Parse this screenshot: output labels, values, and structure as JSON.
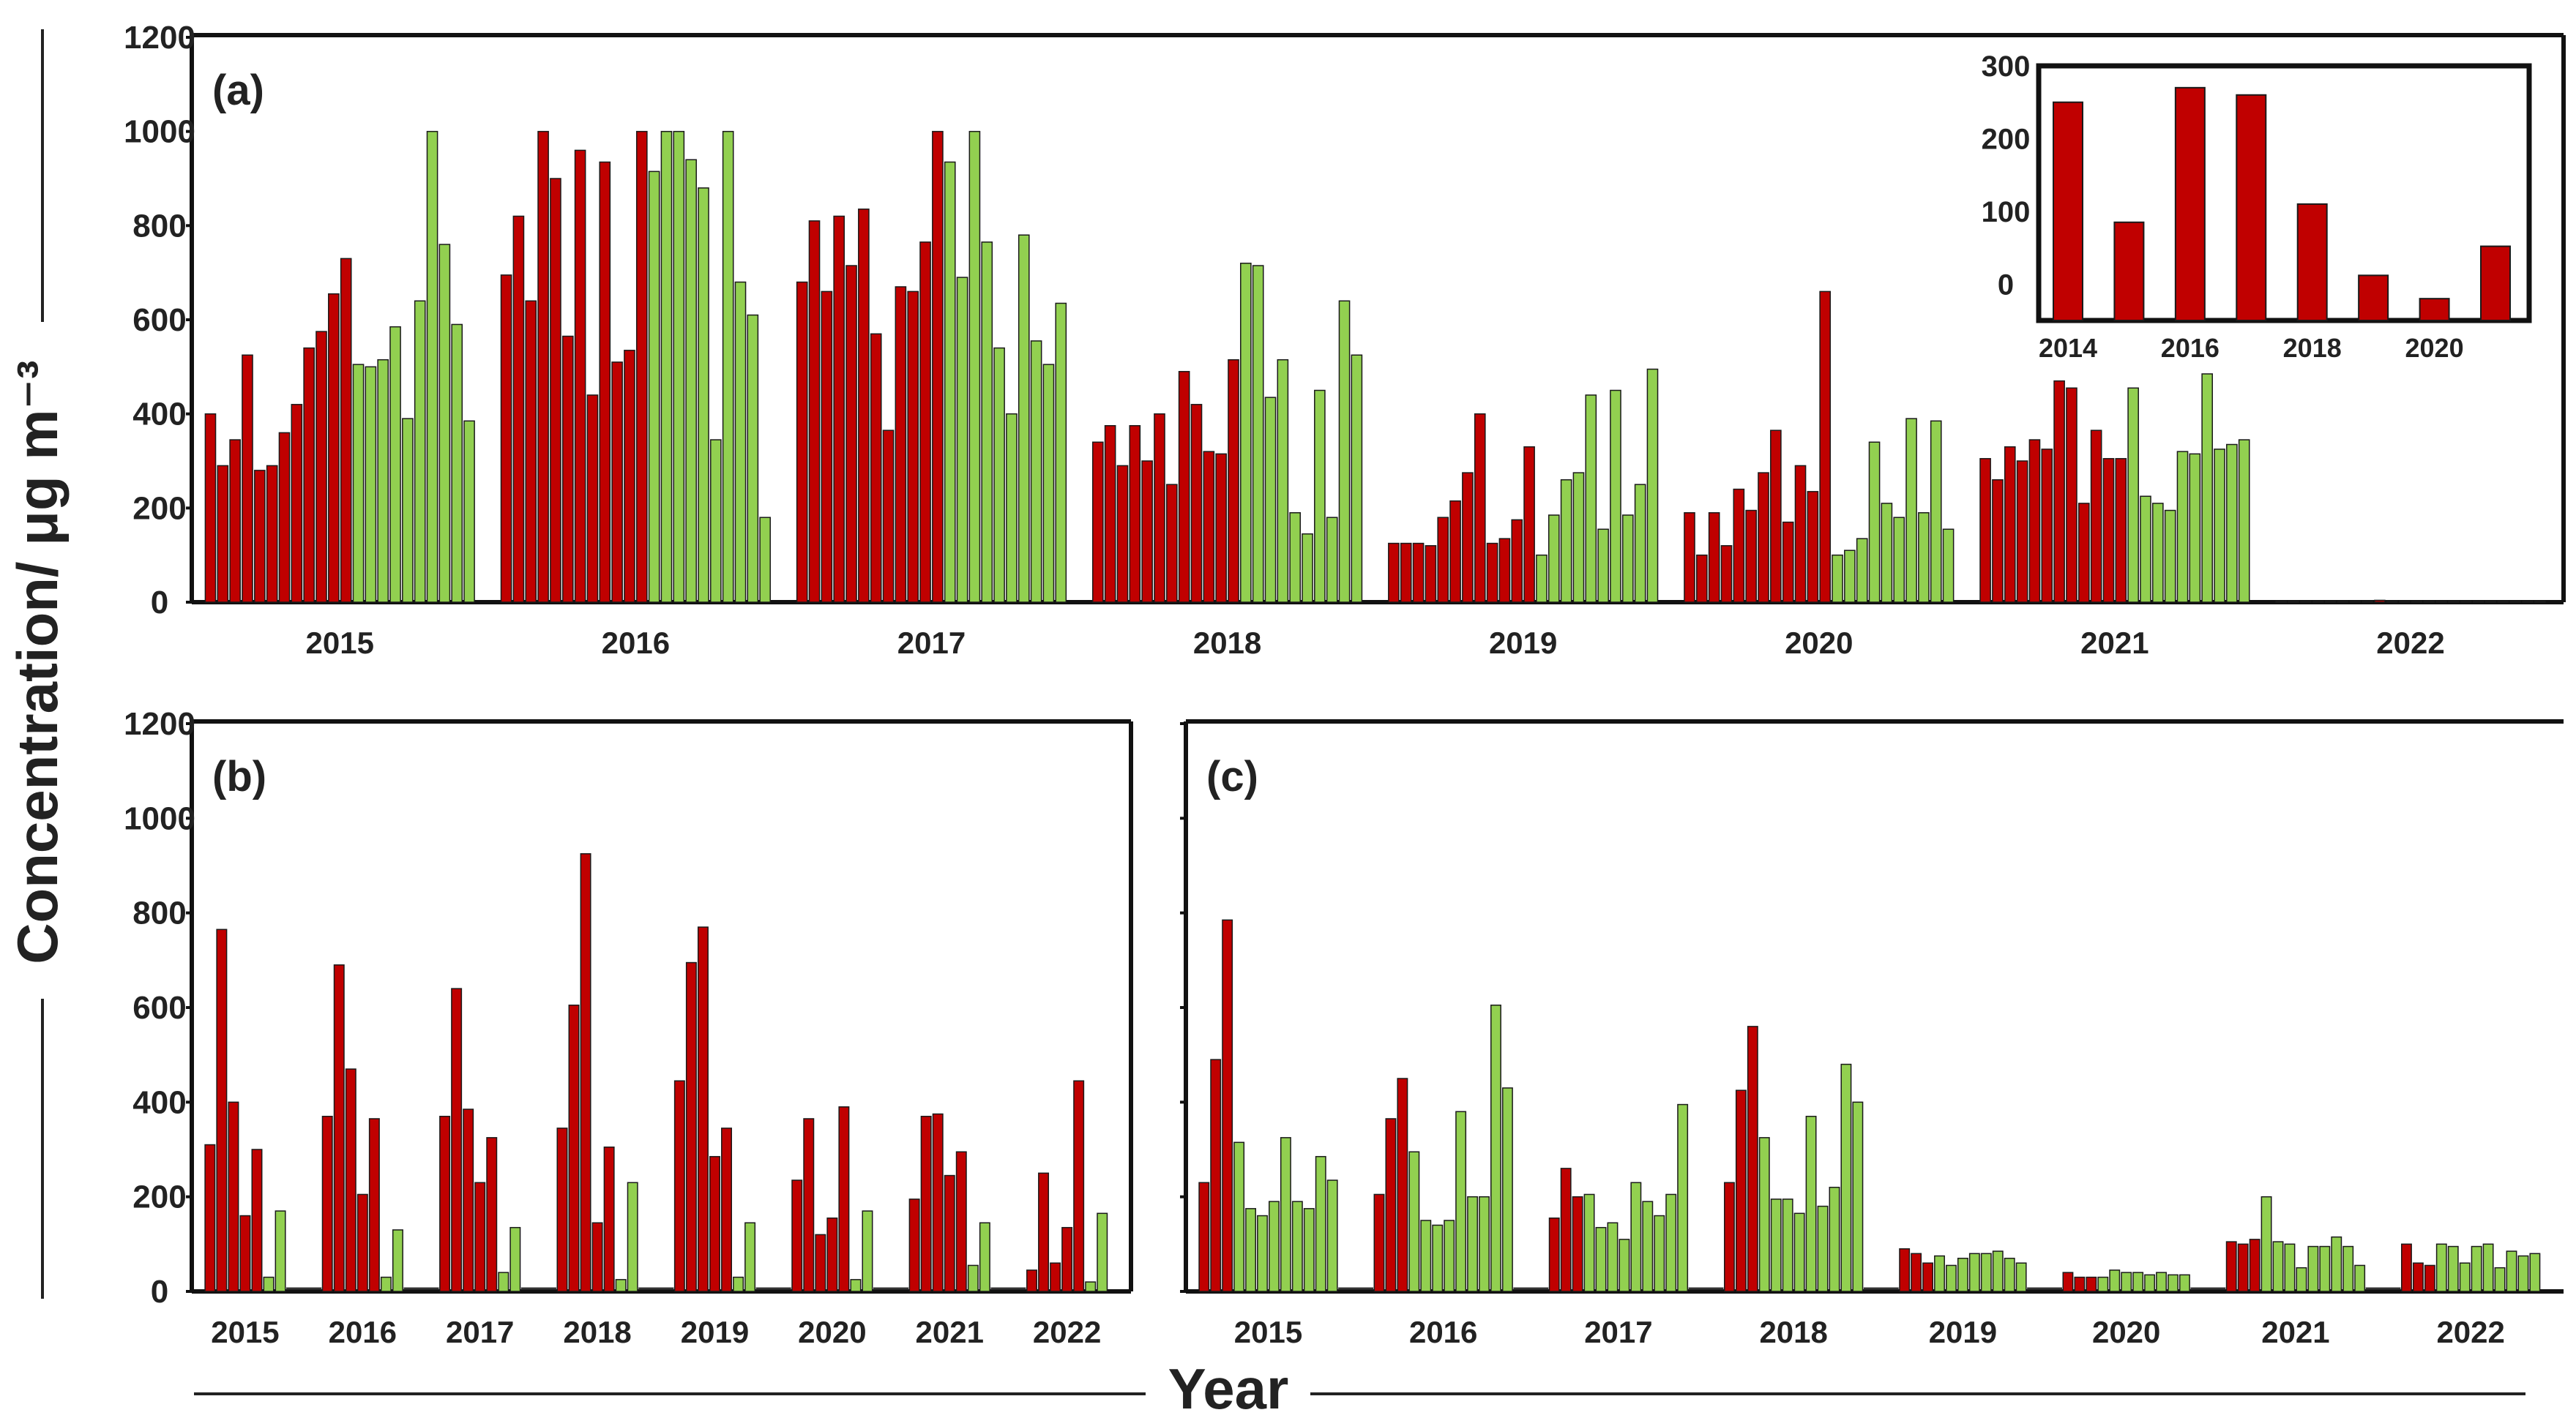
{
  "figure": {
    "ylabel": "Concentration/ μg m⁻³",
    "xlabel": "Year"
  },
  "colors": {
    "red": "#c00000",
    "green": "#92d050",
    "edge": "#1a1a1a"
  },
  "chart_data": [
    {
      "id": "a",
      "type": "bar",
      "panel_label": "(a)",
      "ylim": [
        0,
        1200
      ],
      "yticks": [
        0,
        200,
        400,
        600,
        800,
        1000,
        1200
      ],
      "ylabel": "Concentration/ μg m⁻³",
      "groups": [
        {
          "year": "2015",
          "red": [
            400,
            290,
            345,
            525,
            280,
            290,
            360,
            420,
            540,
            575,
            655,
            730
          ],
          "green": [
            505,
            500,
            515,
            585,
            390,
            640,
            1000,
            760,
            590,
            385
          ]
        },
        {
          "year": "2016",
          "red": [
            695,
            820,
            640,
            1000,
            900,
            565,
            960,
            440,
            935,
            510,
            535,
            1000
          ],
          "green": [
            915,
            1000,
            1000,
            940,
            880,
            345,
            1000,
            680,
            610,
            180
          ]
        },
        {
          "year": "2017",
          "red": [
            680,
            810,
            660,
            820,
            715,
            835,
            570,
            365,
            670,
            660,
            765,
            1000
          ],
          "green": [
            935,
            690,
            1000,
            765,
            540,
            400,
            780,
            555,
            505,
            635
          ]
        },
        {
          "year": "2018",
          "red": [
            340,
            375,
            290,
            375,
            300,
            400,
            250,
            490,
            420,
            320,
            315,
            515
          ],
          "green": [
            720,
            715,
            435,
            515,
            190,
            145,
            450,
            180,
            640,
            525
          ]
        },
        {
          "year": "2019",
          "red": [
            125,
            125,
            125,
            120,
            180,
            215,
            275,
            400,
            125,
            135,
            175,
            330
          ],
          "green": [
            100,
            185,
            260,
            275,
            440,
            155,
            450,
            185,
            250,
            495
          ]
        },
        {
          "year": "2020",
          "red": [
            190,
            100,
            190,
            120,
            240,
            195,
            275,
            365,
            170,
            290,
            235,
            660
          ],
          "green": [
            100,
            110,
            135,
            340,
            210,
            180,
            390,
            190,
            385,
            155
          ]
        },
        {
          "year": "2021",
          "red": [
            305,
            260,
            330,
            300,
            345,
            325,
            470,
            455,
            210,
            365,
            305,
            305
          ],
          "green": [
            455,
            225,
            210,
            195,
            320,
            315,
            485,
            325,
            335,
            345
          ]
        },
        {
          "year": "2022",
          "red": [
            2,
            2,
            2,
            2,
            2,
            2,
            2,
            2,
            4,
            2,
            2,
            2
          ],
          "green": [
            2,
            2,
            2,
            2,
            2,
            2,
            2,
            2,
            2,
            2
          ]
        }
      ]
    },
    {
      "id": "a-inset",
      "type": "bar",
      "ylim": [
        -50,
        300
      ],
      "yticks": [
        0,
        100,
        200,
        300
      ],
      "xticks": [
        "2014",
        "2016",
        "2018",
        "2020"
      ],
      "x": [
        2014,
        2015,
        2016,
        2017,
        2018,
        2019,
        2020,
        2021
      ],
      "values": [
        250,
        85,
        270,
        260,
        110,
        12,
        -20,
        52
      ]
    },
    {
      "id": "b",
      "type": "bar",
      "panel_label": "(b)",
      "ylim": [
        0,
        1200
      ],
      "yticks": [
        0,
        200,
        400,
        600,
        800,
        1000,
        1200
      ],
      "groups": [
        {
          "year": "2015",
          "red": [
            310,
            765,
            400,
            160,
            300
          ],
          "green": [
            30,
            170
          ]
        },
        {
          "year": "2016",
          "red": [
            370,
            690,
            470,
            205,
            365
          ],
          "green": [
            30,
            130
          ]
        },
        {
          "year": "2017",
          "red": [
            370,
            640,
            385,
            230,
            325
          ],
          "green": [
            40,
            135
          ]
        },
        {
          "year": "2018",
          "red": [
            345,
            605,
            925,
            145,
            305
          ],
          "green": [
            25,
            230
          ]
        },
        {
          "year": "2019",
          "red": [
            445,
            695,
            770,
            285,
            345
          ],
          "green": [
            30,
            145
          ]
        },
        {
          "year": "2020",
          "red": [
            235,
            365,
            120,
            155,
            390
          ],
          "green": [
            25,
            170
          ]
        },
        {
          "year": "2021",
          "red": [
            195,
            370,
            375,
            245,
            295
          ],
          "green": [
            55,
            145
          ]
        },
        {
          "year": "2022",
          "red": [
            45,
            250,
            60,
            135,
            445
          ],
          "green": [
            20,
            165
          ]
        }
      ]
    },
    {
      "id": "c",
      "type": "bar",
      "panel_label": "(c)",
      "ylim": [
        0,
        1200
      ],
      "yticks": [
        0,
        200,
        400,
        600,
        800,
        1000,
        1200
      ],
      "groups": [
        {
          "year": "2015",
          "red": [
            230,
            490,
            785
          ],
          "green": [
            315,
            175,
            160,
            190,
            325,
            190,
            175,
            285,
            235
          ]
        },
        {
          "year": "2016",
          "red": [
            205,
            365,
            450
          ],
          "green": [
            295,
            150,
            140,
            150,
            380,
            200,
            200,
            605,
            430
          ]
        },
        {
          "year": "2017",
          "red": [
            155,
            260,
            200
          ],
          "green": [
            205,
            135,
            145,
            110,
            230,
            190,
            160,
            205,
            395
          ]
        },
        {
          "year": "2018",
          "red": [
            230,
            425,
            560
          ],
          "green": [
            325,
            195,
            195,
            165,
            370,
            180,
            220,
            480,
            400
          ]
        },
        {
          "year": "2019",
          "red": [
            90,
            80,
            60
          ],
          "green": [
            75,
            55,
            70,
            80,
            80,
            85,
            70,
            60
          ]
        },
        {
          "year": "2020",
          "red": [
            40,
            30,
            30
          ],
          "green": [
            30,
            45,
            40,
            40,
            35,
            40,
            35,
            35
          ]
        },
        {
          "year": "2021",
          "red": [
            105,
            100,
            110
          ],
          "green": [
            200,
            105,
            100,
            50,
            95,
            95,
            115,
            95,
            55
          ]
        },
        {
          "year": "2022",
          "red": [
            100,
            60,
            55
          ],
          "green": [
            100,
            95,
            60,
            95,
            100,
            50,
            85,
            75,
            80
          ]
        }
      ]
    }
  ]
}
